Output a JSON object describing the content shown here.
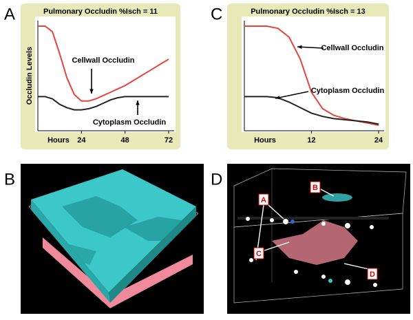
{
  "panel_labels": [
    "A",
    "B",
    "C",
    "D"
  ],
  "chart_data": [
    {
      "type": "line",
      "title": "Pulmonary Occludin %Isch = 11",
      "y_label": "Occludin Levels",
      "x_label": "Hours",
      "x": [
        0,
        4,
        8,
        12,
        16,
        20,
        24,
        28,
        32,
        36,
        40,
        44,
        48,
        52,
        56,
        60,
        64,
        68,
        72
      ],
      "xlim": [
        0,
        72
      ],
      "xticks": [
        24,
        48,
        72
      ],
      "ylim": [
        0,
        100
      ],
      "series": [
        {
          "name": "Cellwall Occludin",
          "color": "#e8433a",
          "values": [
            95,
            95,
            90,
            70,
            48,
            33,
            27,
            27,
            29,
            32,
            35,
            38,
            41,
            45,
            49,
            53,
            57,
            61,
            65
          ]
        },
        {
          "name": "Cytoplasm Occludin",
          "color": "#222222",
          "values": [
            31,
            31,
            29,
            24,
            21,
            19,
            19,
            20,
            22,
            25,
            28,
            30,
            31,
            31,
            31,
            31,
            31,
            31,
            31
          ]
        }
      ]
    },
    {
      "type": "line",
      "title": "Pulmonary Occludin %Isch = 13",
      "x_label": "Hours",
      "x": [
        0,
        2,
        4,
        6,
        8,
        10,
        12,
        14,
        16,
        18,
        20,
        22,
        24
      ],
      "xlim": [
        0,
        24
      ],
      "xticks": [
        12,
        24
      ],
      "ylim": [
        0,
        100
      ],
      "series": [
        {
          "name": "Cellwall Occludin",
          "color": "#e8433a",
          "values": [
            95,
            95,
            95,
            93,
            85,
            65,
            35,
            20,
            14,
            11,
            9,
            7,
            5
          ]
        },
        {
          "name": "Cytoplasm Occludin",
          "color": "#222222",
          "values": [
            31,
            31,
            31,
            30,
            26,
            21,
            16,
            13,
            11,
            10,
            9,
            8,
            6
          ]
        }
      ]
    }
  ],
  "panel_d_labels": [
    "A",
    "B",
    "C",
    "D"
  ]
}
